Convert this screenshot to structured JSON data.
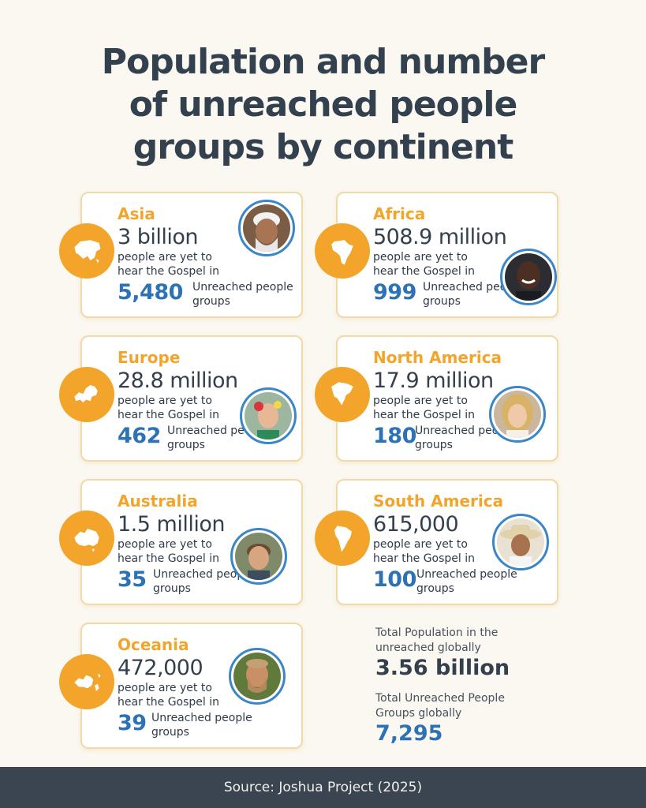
{
  "title_lines": [
    "Population and number",
    "of unreached people",
    "groups by continent"
  ],
  "subtitle_text": "people are yet to hear the Gospel in",
  "upg_label": "Unreached people groups",
  "cards": [
    {
      "continent": "Asia",
      "population": "3 billion",
      "upg": "5,480",
      "icon": "asia-map-icon",
      "photo": "man-with-white-cap-photo"
    },
    {
      "continent": "Africa",
      "population": "508.9 million",
      "upg": "999",
      "icon": "africa-map-icon",
      "photo": "smiling-man-photo"
    },
    {
      "continent": "Europe",
      "population": "28.8 million",
      "upg": "462",
      "icon": "europe-map-icon",
      "photo": "woman-with-flower-crown-photo"
    },
    {
      "continent": "North America",
      "population": "17.9 million",
      "upg": "180",
      "icon": "north-america-map-icon",
      "photo": "blonde-woman-photo"
    },
    {
      "continent": "Australia",
      "population": "1.5 million",
      "upg": "35",
      "icon": "australia-map-icon",
      "photo": "young-man-photo"
    },
    {
      "continent": "South America",
      "population": "615,000",
      "upg": "100",
      "icon": "south-america-map-icon",
      "photo": "man-with-hat-photo"
    },
    {
      "continent": "Oceania",
      "population": "472,000",
      "upg": "39",
      "icon": "oceania-map-icon",
      "photo": "bearded-man-photo"
    }
  ],
  "totals": {
    "population_label": "Total Population in the unreached globally",
    "population_value": "3.56 billion",
    "groups_label": "Total Unreached People Groups globally",
    "groups_value": "7,295"
  },
  "footer": "Source: Joshua Project (2025)",
  "colors": {
    "accent_orange": "#f2a52a",
    "number_blue": "#2c72b5",
    "title_dark": "#33414f",
    "footer_bg": "#3b4552"
  }
}
